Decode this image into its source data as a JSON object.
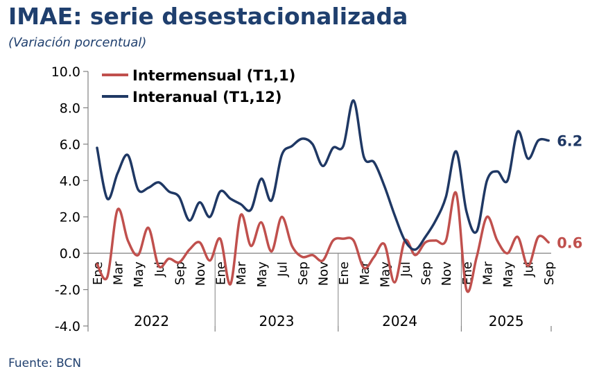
{
  "title": "IMAE: serie desestacionalizada",
  "subtitle": "(Variación porcentual)",
  "source": "Fuente: BCN",
  "chart_data": {
    "type": "line",
    "ylim": [
      -4,
      10
    ],
    "y_ticks": [
      "10.0",
      "8.0",
      "6.0",
      "4.0",
      "2.0",
      "0.0",
      "-2.0",
      "-4.0"
    ],
    "x_tick_labels": [
      "Ene",
      "Mar",
      "May",
      "Jul",
      "Sep",
      "Nov",
      "Ene",
      "Mar",
      "May",
      "Jul",
      "Sep",
      "Nov",
      "Ene",
      "Mar",
      "May",
      "Jul",
      "Sep",
      "Nov",
      "Ene",
      "Mar",
      "May",
      "Jul",
      "Sep"
    ],
    "years": [
      "2022",
      "2023",
      "2024",
      "2025"
    ],
    "months_per_year": 12,
    "legend_position": "top-left",
    "grid": false,
    "series": [
      {
        "name": "Intermensual (T1,1)",
        "color": "#C0504D",
        "end_label": "0.6",
        "values": [
          -0.6,
          -1.3,
          2.4,
          0.7,
          -0.1,
          1.4,
          -0.7,
          -0.3,
          -0.5,
          0.2,
          0.6,
          -0.4,
          0.8,
          -1.7,
          2.1,
          0.4,
          1.7,
          0.1,
          2.0,
          0.4,
          -0.2,
          -0.1,
          -0.4,
          0.7,
          0.8,
          0.7,
          -0.8,
          -0.2,
          0.5,
          -1.6,
          0.7,
          -0.1,
          0.6,
          0.7,
          0.7,
          3.3,
          -2.0,
          -0.2,
          2.0,
          0.7,
          0.0,
          0.9,
          -0.7,
          0.9,
          0.6
        ]
      },
      {
        "name": "Interanual (T1,12)",
        "color": "#1F3864",
        "end_label": "6.2",
        "values": [
          5.8,
          3.0,
          4.4,
          5.4,
          3.5,
          3.6,
          3.9,
          3.4,
          3.1,
          1.8,
          2.8,
          2.0,
          3.4,
          3.0,
          2.7,
          2.4,
          4.1,
          2.9,
          5.4,
          5.9,
          6.3,
          6.0,
          4.8,
          5.8,
          5.9,
          8.4,
          5.3,
          5.0,
          3.7,
          2.1,
          0.7,
          0.2,
          0.9,
          1.8,
          3.1,
          5.6,
          2.3,
          1.2,
          4.0,
          4.5,
          4.0,
          6.7,
          5.2,
          6.2,
          6.2
        ]
      }
    ]
  }
}
